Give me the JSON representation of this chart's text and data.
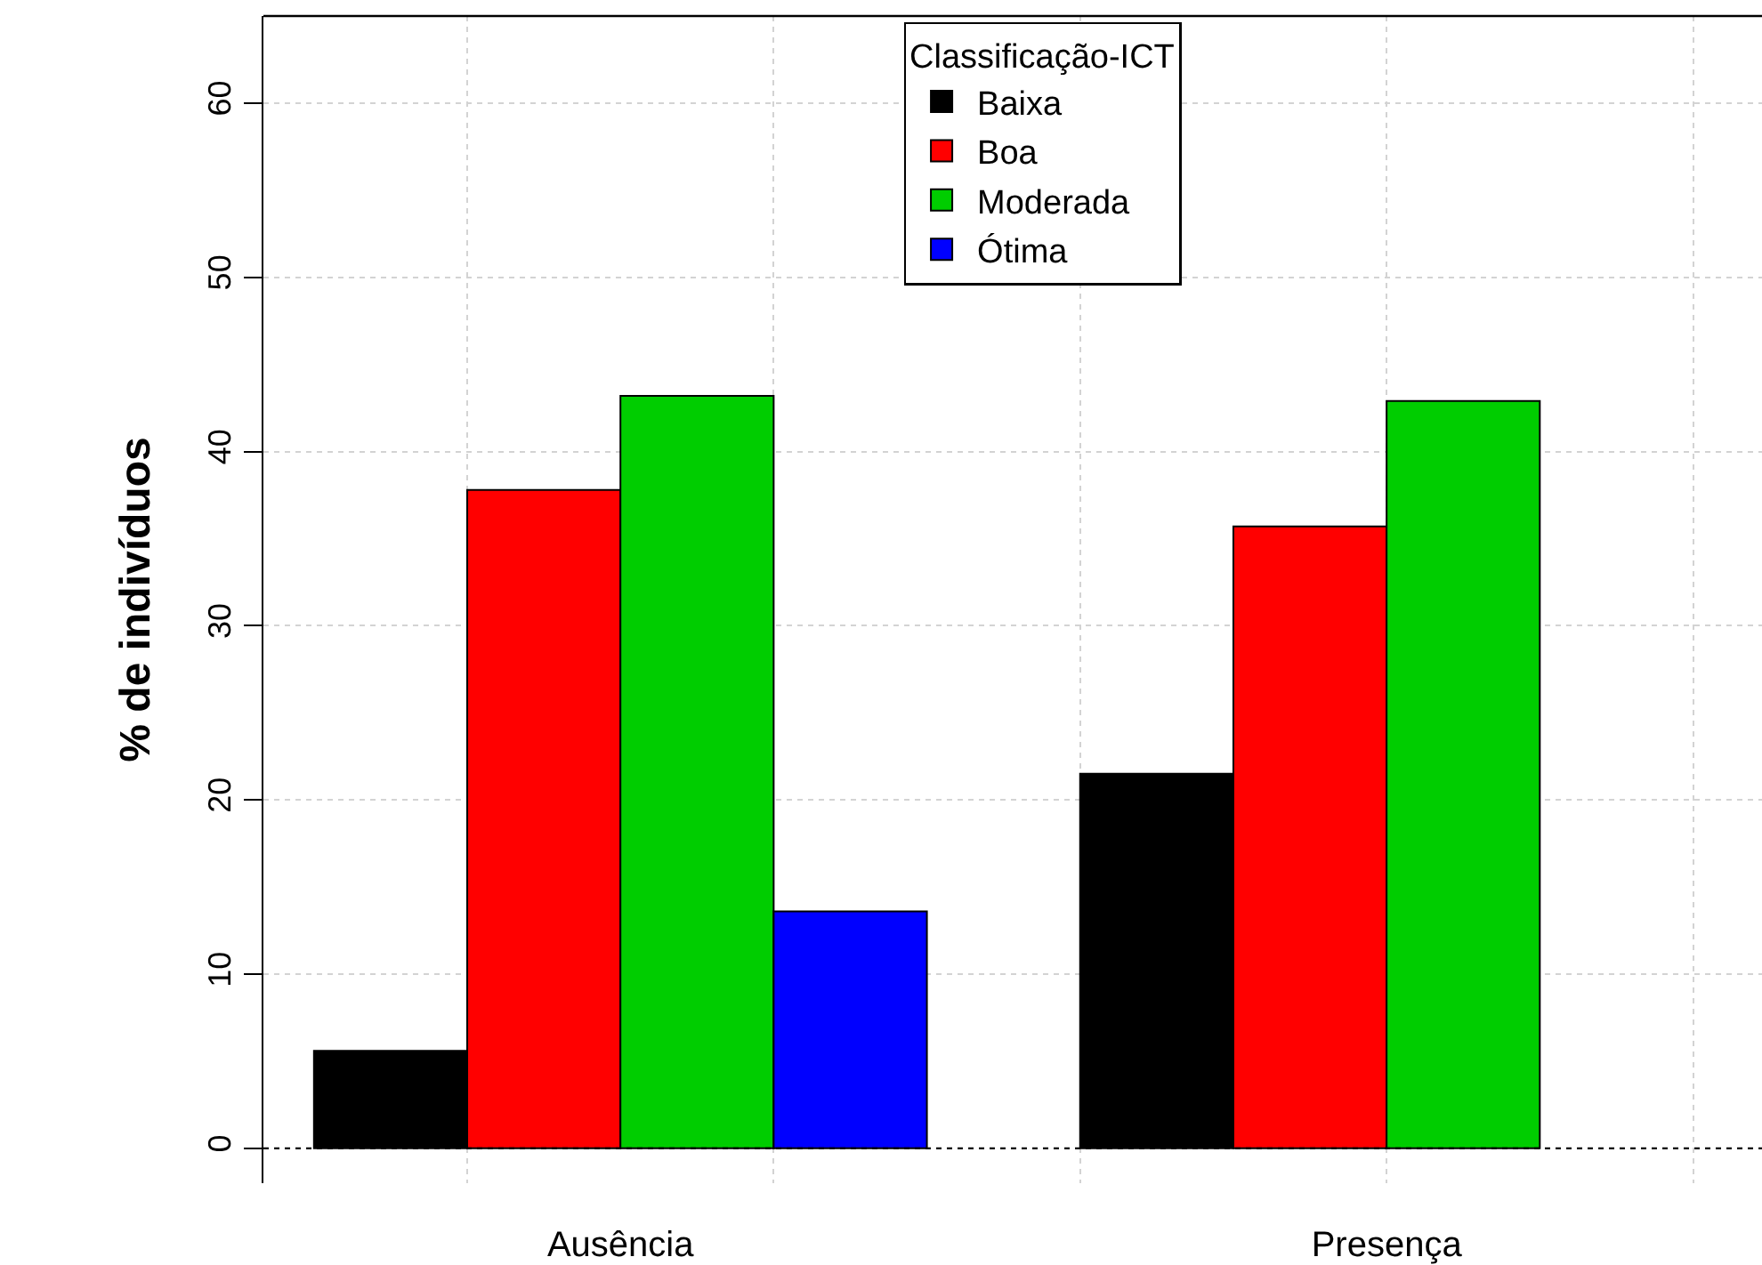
{
  "chart_data": {
    "type": "bar",
    "ylabel": "% de indivíduos",
    "legend_title": "Classificação-ICT",
    "categories": [
      "Ausência",
      "Presença"
    ],
    "series": [
      {
        "name": "Baixa",
        "color": "#000000",
        "values": [
          5.6,
          21.5
        ]
      },
      {
        "name": "Boa",
        "color": "#ff0000",
        "values": [
          37.8,
          35.7
        ]
      },
      {
        "name": "Moderada",
        "color": "#00cd00",
        "values": [
          43.2,
          42.9
        ]
      },
      {
        "name": "Ótima",
        "color": "#0000ff",
        "values": [
          13.6,
          null
        ]
      }
    ],
    "ylim": [
      -2,
      65
    ],
    "yticks": [
      0,
      10,
      20,
      30,
      40,
      50,
      60
    ],
    "grid": true,
    "legend": "top",
    "ref_lines": [
      {
        "axis": "y",
        "value": 0,
        "color": "#000000",
        "line_style": "dotted"
      }
    ]
  }
}
